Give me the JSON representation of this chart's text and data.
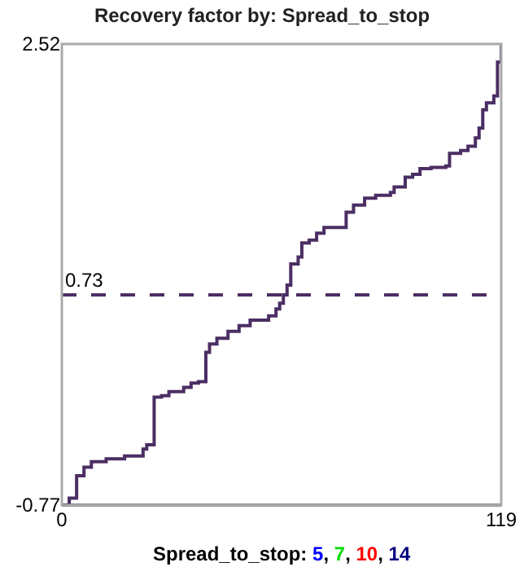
{
  "chart_data": {
    "type": "step",
    "title": "Recovery factor by: Spread_to_stop",
    "x": [
      0,
      2,
      4,
      6,
      8,
      12,
      17,
      22,
      23,
      25,
      27,
      29,
      33,
      35,
      37,
      39,
      40,
      42,
      45,
      48,
      51,
      56,
      58,
      59,
      60,
      61,
      62,
      64,
      65,
      67,
      69,
      71,
      77,
      79,
      82,
      85,
      89,
      90,
      93,
      95,
      97,
      100,
      104,
      105,
      108,
      110,
      112,
      113,
      114,
      115,
      117,
      118,
      119
    ],
    "series": [
      {
        "color": "#4b2e63",
        "values": [
          -0.77,
          -0.72,
          -0.56,
          -0.5,
          -0.46,
          -0.44,
          -0.42,
          -0.37,
          -0.34,
          0.0,
          0.01,
          0.04,
          0.07,
          0.1,
          0.11,
          0.32,
          0.38,
          0.42,
          0.47,
          0.51,
          0.55,
          0.58,
          0.63,
          0.67,
          0.73,
          0.8,
          0.95,
          1.0,
          1.1,
          1.12,
          1.17,
          1.21,
          1.32,
          1.37,
          1.42,
          1.44,
          1.46,
          1.5,
          1.57,
          1.59,
          1.63,
          1.64,
          1.65,
          1.74,
          1.76,
          1.79,
          1.85,
          1.92,
          2.05,
          2.1,
          2.15,
          2.39,
          2.52
        ]
      }
    ],
    "xlim": [
      0,
      119
    ],
    "xticks": [
      0,
      119
    ],
    "ylim": [
      -0.77,
      2.52
    ],
    "yticks": [
      -0.77,
      2.52
    ],
    "ref_lines": [
      {
        "axis": "y",
        "value": 0.73,
        "label": "0.73",
        "color": "#4b2e63",
        "line_style": "dashed"
      }
    ],
    "annotations": [
      "Spread_to_stop: 5, 7, 10, 14"
    ]
  }
}
